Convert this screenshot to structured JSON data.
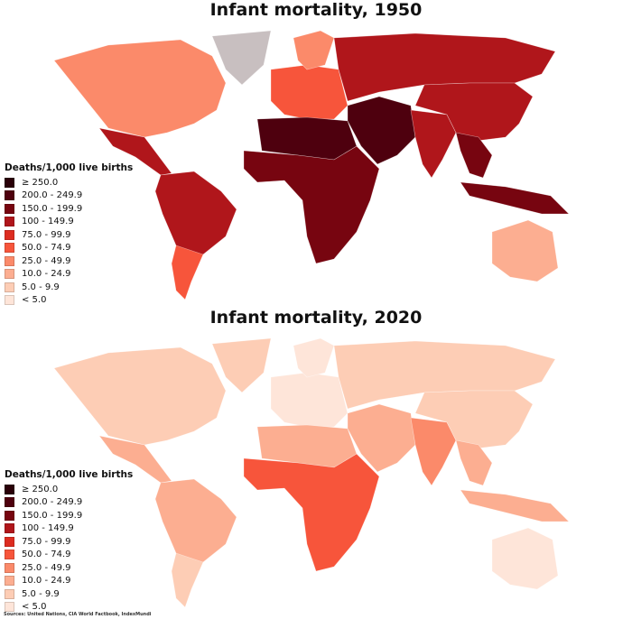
{
  "maps": [
    {
      "title": "Infant mortality, 1950",
      "region_bins": {
        "north-america": 6,
        "greenland": -1,
        "central-america": 3,
        "south-america": 3,
        "southern-cone": 5,
        "europe": 5,
        "scandinavia": 6,
        "russia": 3,
        "north-africa": 1,
        "africa": 2,
        "middle-east": 1,
        "south-asia": 3,
        "east-asia": 3,
        "southeast-asia": 2,
        "indonesia": 2,
        "australia": 7
      }
    },
    {
      "title": "Infant mortality, 2020",
      "region_bins": {
        "north-america": 8,
        "greenland": 8,
        "central-america": 7,
        "south-america": 7,
        "southern-cone": 8,
        "europe": 9,
        "scandinavia": 9,
        "russia": 8,
        "north-africa": 7,
        "africa": 5,
        "middle-east": 7,
        "south-asia": 6,
        "east-asia": 8,
        "southeast-asia": 7,
        "indonesia": 7,
        "australia": 9
      }
    }
  ],
  "legend": {
    "header": "Deaths/1,000 live births",
    "bins": [
      {
        "label": "≥ 250.0",
        "color": "#2a0008"
      },
      {
        "label": "200.0 - 249.9",
        "color": "#4e000e"
      },
      {
        "label": "150.0 - 199.9",
        "color": "#770510"
      },
      {
        "label": "100 - 149.9",
        "color": "#b0161b"
      },
      {
        "label": "75.0 - 99.9",
        "color": "#dd2c20"
      },
      {
        "label": "50.0 - 74.9",
        "color": "#f7553b"
      },
      {
        "label": "25.0 - 49.9",
        "color": "#fb8a6a"
      },
      {
        "label": "10.0 - 24.9",
        "color": "#fcae91"
      },
      {
        "label": "5.0 - 9.9",
        "color": "#fdcdb5"
      },
      {
        "label": "< 5.0",
        "color": "#fee5d9"
      }
    ],
    "no_data_color": "#c8bfc0"
  },
  "sources": "Sources: United Nations, CIA World Factbook, IndexMundi"
}
